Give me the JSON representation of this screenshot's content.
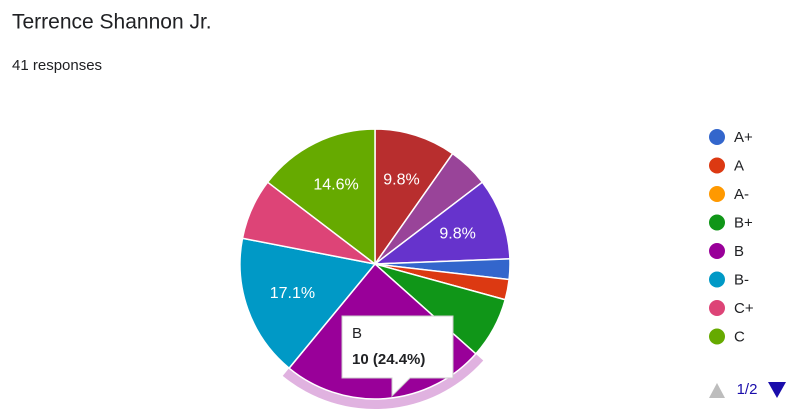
{
  "chart_data": {
    "type": "pie",
    "title": "Terrence Shannon Jr.",
    "subtitle": "41 responses",
    "categories": [
      null,
      null,
      null,
      "A+",
      "A",
      "A-",
      "B+",
      "B",
      "B-",
      "C+",
      "C"
    ],
    "values": [
      4,
      2,
      4,
      1,
      1,
      0,
      3,
      10,
      7,
      3,
      6
    ],
    "value_labels": [
      "9.8%",
      null,
      "9.8%",
      null,
      null,
      null,
      null,
      null,
      "17.1%",
      null,
      "14.6%"
    ],
    "colors": [
      "#b82e2e",
      "#994499",
      "#6633cc",
      "#3366cc",
      "#dc3912",
      "#ff9900",
      "#109618",
      "#990099",
      "#0099c6",
      "#dd4477",
      "#66aa00"
    ],
    "tooltip": {
      "category": "B",
      "text": "10 (24.4%)"
    },
    "legend_page": "1/2"
  }
}
